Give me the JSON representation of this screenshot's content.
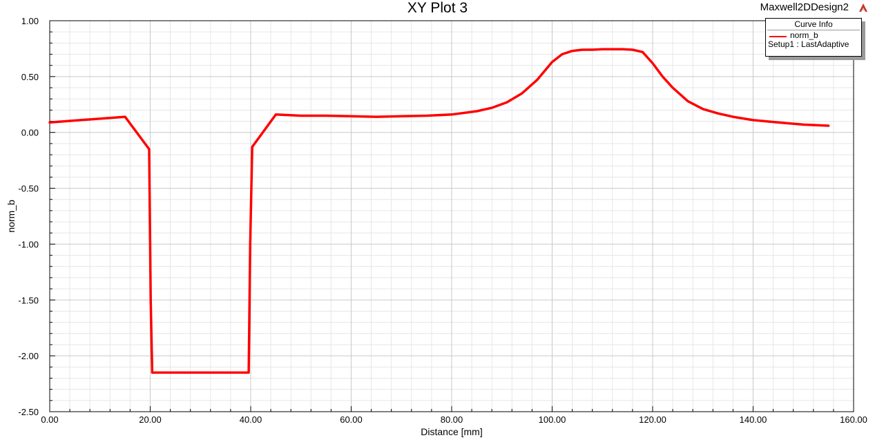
{
  "plot": {
    "title": "XY Plot 3",
    "design_name": "Maxwell2DDesign2",
    "design_icon": "maxwell-logo-icon"
  },
  "legend": {
    "header": "Curve Info",
    "series_label": "norm_b",
    "setup_label": "Setup1 : LastAdaptive"
  },
  "colors": {
    "series": "#ff0000",
    "grid_major": "#c8c8c8",
    "grid_minor": "#e6e6e6"
  },
  "chart_data": {
    "type": "line",
    "xlabel": "Distance [mm]",
    "ylabel": "norm_b",
    "xlim": [
      0,
      160
    ],
    "ylim": [
      -2.5,
      1.0
    ],
    "x_ticks": [
      "0.00",
      "20.00",
      "40.00",
      "60.00",
      "80.00",
      "100.00",
      "120.00",
      "140.00",
      "160.00"
    ],
    "y_ticks": [
      "1.00",
      "0.50",
      "0.00",
      "-0.50",
      "-1.00",
      "-1.50",
      "-2.00",
      "-2.50"
    ],
    "grid": true,
    "legend_position": "top-right",
    "series": [
      {
        "name": "norm_b",
        "x": [
          0,
          15,
          19.8,
          20.1,
          20.4,
          25,
          30,
          35,
          39.6,
          39.9,
          40.3,
          45,
          50,
          55,
          60,
          65,
          70,
          75,
          80,
          85,
          88,
          91,
          94,
          97,
          100,
          102,
          104,
          106,
          108,
          110,
          112,
          114,
          116,
          118,
          120,
          122,
          124,
          127,
          130,
          133,
          136,
          140,
          145,
          150,
          155
        ],
        "values": [
          0.09,
          0.14,
          -0.15,
          -1.5,
          -2.15,
          -2.15,
          -2.15,
          -2.15,
          -2.15,
          -1.0,
          -0.13,
          0.16,
          0.15,
          0.15,
          0.145,
          0.14,
          0.145,
          0.15,
          0.16,
          0.19,
          0.22,
          0.27,
          0.35,
          0.47,
          0.63,
          0.7,
          0.73,
          0.74,
          0.74,
          0.745,
          0.745,
          0.745,
          0.74,
          0.72,
          0.62,
          0.5,
          0.4,
          0.28,
          0.21,
          0.17,
          0.14,
          0.11,
          0.09,
          0.07,
          0.06
        ]
      }
    ]
  }
}
